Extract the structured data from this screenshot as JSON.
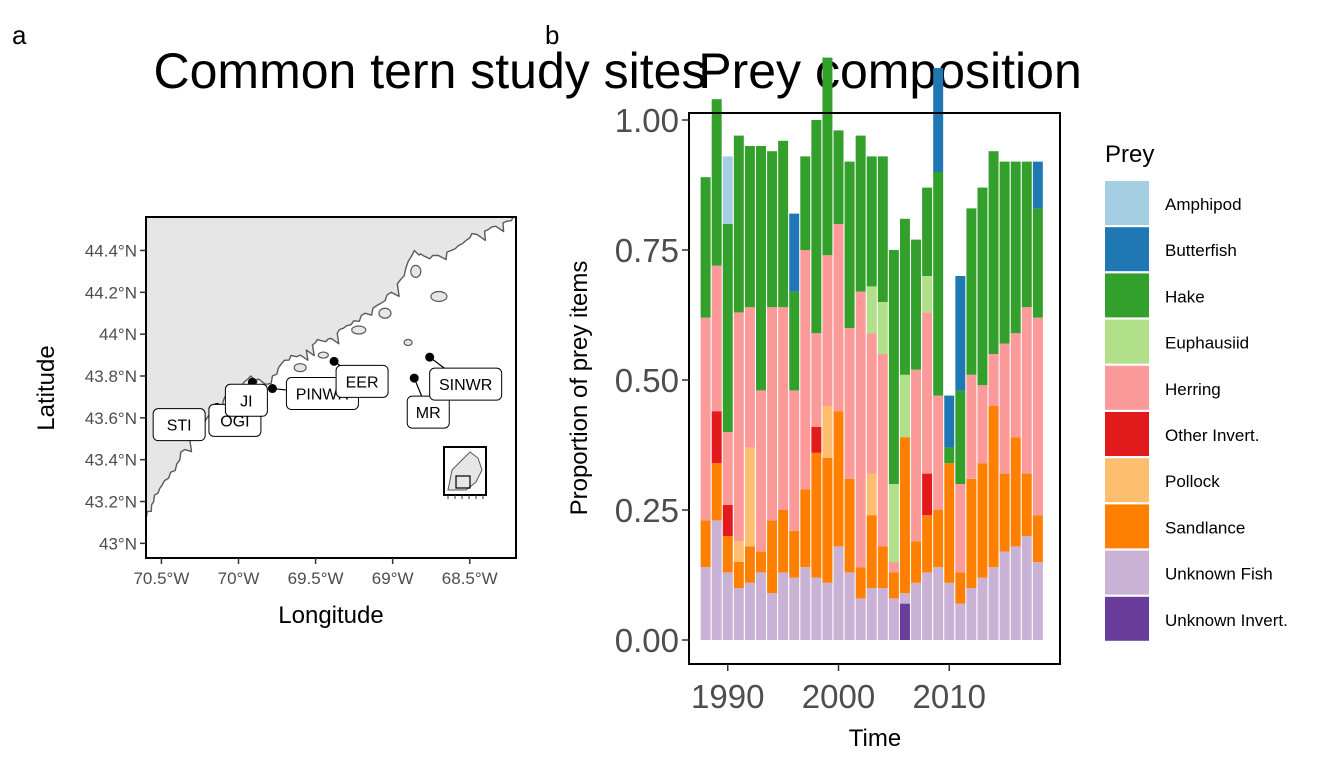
{
  "panel_labels": [
    "a",
    "b"
  ],
  "chart_data": [
    {
      "type": "map",
      "title": "Common tern study sites",
      "xlabel": "Longitude",
      "ylabel": "Latitude",
      "xlim": [
        -70.6,
        -68.2
      ],
      "ylim": [
        42.93,
        44.56
      ],
      "x_ticks": [
        -70.5,
        -70,
        -69.5,
        -69,
        -68.5
      ],
      "x_tick_labels": [
        "70.5°W",
        "70°W",
        "69.5°W",
        "69°W",
        "68.5°W"
      ],
      "y_ticks": [
        43,
        43.2,
        43.4,
        43.6,
        43.8,
        44,
        44.2,
        44.4
      ],
      "y_tick_labels": [
        "43°N",
        "43.2°N",
        "43.4°N",
        "43.6°N",
        "43.8°N",
        "44°N",
        "44.2°N",
        "44.4°N"
      ],
      "colors": {
        "land": "#e6e6e6",
        "coast": "#5a5a5a",
        "water": "#ffffff"
      },
      "sites": [
        {
          "label": "STI",
          "lon": -70.32,
          "lat": 43.51
        },
        {
          "label": "OGI",
          "lon": -70.14,
          "lat": 43.65
        },
        {
          "label": "JI",
          "lon": -69.91,
          "lat": 43.77
        },
        {
          "label": "PINWR",
          "lon": -69.78,
          "lat": 43.74
        },
        {
          "label": "EER",
          "lon": -69.38,
          "lat": 43.87
        },
        {
          "label": "MR",
          "lon": -68.86,
          "lat": 43.79
        },
        {
          "label": "SINWR",
          "lon": -68.76,
          "lat": 43.89
        }
      ]
    },
    {
      "type": "bar",
      "stacked": true,
      "title": "Prey composition",
      "xlabel": "Time",
      "ylabel": "Proportion of prey items",
      "ylim": [
        0,
        1.0
      ],
      "y_ticks": [
        0,
        0.25,
        0.5,
        0.75,
        1.0
      ],
      "y_tick_labels": [
        "0.00",
        "0.25",
        "0.50",
        "0.75",
        "1.00"
      ],
      "xlim": [
        1986.5,
        2020
      ],
      "x_ticks": [
        1990,
        2000,
        2010
      ],
      "x_tick_labels": [
        "1990",
        "2000",
        "2010"
      ],
      "categories": [
        1988,
        1989,
        1990,
        1991,
        1992,
        1993,
        1994,
        1995,
        1996,
        1997,
        1998,
        1999,
        2000,
        2001,
        2002,
        2003,
        2004,
        2005,
        2006,
        2007,
        2008,
        2009,
        2010,
        2011,
        2012,
        2013,
        2014,
        2015,
        2016,
        2017,
        2018
      ],
      "legend": {
        "title": "Prey",
        "position": "right"
      },
      "series": [
        {
          "name": "Unknown Invert.",
          "color": "#6a3d9a",
          "values": [
            0,
            0,
            0,
            0,
            0,
            0,
            0,
            0,
            0,
            0,
            0,
            0,
            0,
            0,
            0,
            0,
            0,
            0,
            0.07,
            0,
            0,
            0,
            0,
            0,
            0,
            0,
            0,
            0,
            0,
            0,
            0
          ]
        },
        {
          "name": "Unknown Fish",
          "color": "#cab2d6",
          "values": [
            0.14,
            0.23,
            0.13,
            0.1,
            0.11,
            0.13,
            0.09,
            0.13,
            0.12,
            0.14,
            0.12,
            0.11,
            0.18,
            0.13,
            0.08,
            0.1,
            0.1,
            0.08,
            0.02,
            0.11,
            0.13,
            0.14,
            0.11,
            0.07,
            0.1,
            0.12,
            0.14,
            0.17,
            0.18,
            0.2,
            0.15
          ]
        },
        {
          "name": "Sandlance",
          "color": "#ff7f00",
          "values": [
            0.09,
            0.11,
            0.07,
            0.05,
            0.07,
            0.04,
            0.14,
            0.12,
            0.09,
            0.15,
            0.24,
            0.24,
            0.26,
            0.18,
            0.06,
            0.14,
            0.08,
            0.05,
            0.3,
            0.08,
            0.11,
            0.11,
            0.23,
            0.06,
            0.21,
            0.22,
            0.31,
            0.15,
            0.21,
            0.12,
            0.09
          ]
        },
        {
          "name": "Pollock",
          "color": "#fdbf6f",
          "values": [
            0,
            0,
            0,
            0.04,
            0.19,
            0,
            0,
            0,
            0,
            0,
            0,
            0.1,
            0,
            0,
            0,
            0.08,
            0,
            0,
            0,
            0,
            0,
            0,
            0,
            0,
            0,
            0,
            0,
            0,
            0,
            0,
            0
          ]
        },
        {
          "name": "Other Invert.",
          "color": "#e31a1c",
          "values": [
            0,
            0.1,
            0.06,
            0,
            0,
            0,
            0,
            0,
            0,
            0,
            0.05,
            0,
            0,
            0,
            0,
            0,
            0,
            0,
            0,
            0,
            0.08,
            0,
            0,
            0,
            0,
            0,
            0,
            0,
            0,
            0,
            0
          ]
        },
        {
          "name": "Herring",
          "color": "#fb9a99",
          "values": [
            0.39,
            0.28,
            0.14,
            0.44,
            0.27,
            0.31,
            0.41,
            0.39,
            0.27,
            0.46,
            0.18,
            0.29,
            0.36,
            0.29,
            0.53,
            0.27,
            0.37,
            0.02,
            0.0,
            0.33,
            0.31,
            0.22,
            0.0,
            0.17,
            0.2,
            0.15,
            0.1,
            0.25,
            0.2,
            0.32,
            0.38
          ]
        },
        {
          "name": "Euphausiid",
          "color": "#b2df8a",
          "values": [
            0,
            0,
            0,
            0,
            0,
            0,
            0,
            0,
            0,
            0,
            0,
            0,
            0,
            0,
            0,
            0.09,
            0.1,
            0.15,
            0.12,
            0,
            0.07,
            0,
            0,
            0,
            0,
            0,
            0,
            0,
            0,
            0,
            0
          ]
        },
        {
          "name": "Hake",
          "color": "#33a02c",
          "values": [
            0.27,
            0.32,
            0.4,
            0.34,
            0.31,
            0.47,
            0.3,
            0.32,
            0.19,
            0.18,
            0.41,
            0.38,
            0.18,
            0.32,
            0.3,
            0.25,
            0.28,
            0.45,
            0.3,
            0.25,
            0.17,
            0.43,
            0.03,
            0.18,
            0.32,
            0.38,
            0.39,
            0.35,
            0.33,
            0.28,
            0.21
          ]
        },
        {
          "name": "Butterfish",
          "color": "#1f78b4",
          "values": [
            0,
            0,
            0,
            0,
            0,
            0,
            0,
            0,
            0.15,
            0,
            0,
            0,
            0,
            0,
            0,
            0,
            0,
            0,
            0,
            0,
            0,
            0.2,
            0.1,
            0.22,
            0,
            0,
            0,
            0,
            0,
            0,
            0.09
          ]
        },
        {
          "name": "Amphipod",
          "color": "#a6cee3",
          "values": [
            0,
            0,
            0.13,
            0,
            0,
            0,
            0,
            0,
            0,
            0,
            0,
            0,
            0,
            0,
            0,
            0,
            0,
            0,
            0,
            0,
            0,
            0,
            0,
            0,
            0,
            0,
            0,
            0,
            0,
            0,
            0
          ]
        }
      ]
    }
  ]
}
